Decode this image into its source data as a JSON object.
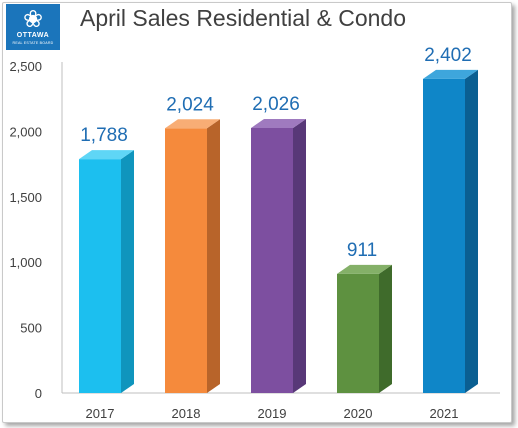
{
  "logo": {
    "leaf_glyph": "❀",
    "name": "OTTAWA",
    "subtitle": "REAL ESTATE BOARD"
  },
  "chart_data": {
    "type": "bar",
    "title": "April Sales Residential & Condo",
    "xlabel": "",
    "ylabel": "",
    "categories": [
      "2017",
      "2018",
      "2019",
      "2020",
      "2021"
    ],
    "values": [
      1788,
      2024,
      2026,
      911,
      2402
    ],
    "data_labels": [
      "1,788",
      "2,024",
      "2,026",
      "911",
      "2,402"
    ],
    "ylim": [
      0,
      2500
    ],
    "yticks": [
      0,
      500,
      1000,
      1500,
      2000,
      2500
    ],
    "ytick_labels": [
      "0",
      "500",
      "1,000",
      "1,500",
      "2,000",
      "2,500"
    ],
    "grid": false,
    "legend": "none",
    "bar_style": "3d",
    "colors": [
      "#1cbfef",
      "#f58a3c",
      "#7d4fa0",
      "#5e9140",
      "#0f86c8"
    ],
    "side_colors": [
      "#0f95bd",
      "#b8642a",
      "#583878",
      "#3f6b2b",
      "#0a5f92"
    ],
    "top_colors": [
      "#5fd6f6",
      "#f8ad75",
      "#9f7abf",
      "#84b068",
      "#3ea6dc"
    ],
    "label_color": "#1f6db3",
    "axis_color": "#bfbfbf",
    "tick_text_color": "#404040"
  }
}
